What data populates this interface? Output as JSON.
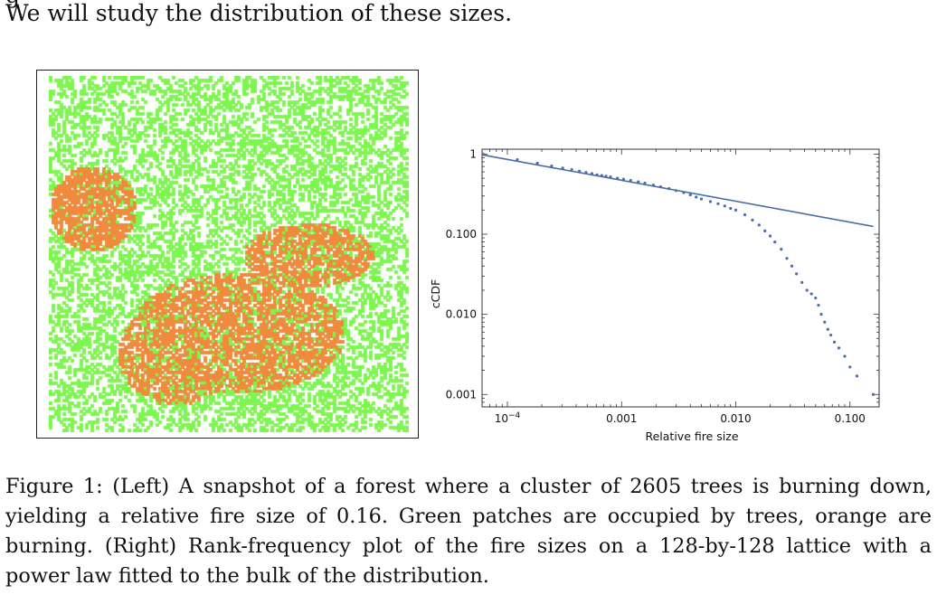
{
  "intro": {
    "partial_line": "g",
    "line": "We will study the distribution of these sizes."
  },
  "forest": {
    "grid_size": 128,
    "burning_cluster_trees": 2605,
    "relative_fire_size": 0.16,
    "colors": {
      "tree": "#7CF74E",
      "burning": "#F08A3C",
      "empty": "#FFFFFF"
    }
  },
  "chart_data": {
    "type": "scatter",
    "title": "",
    "xlabel": "Relative fire size",
    "ylabel": "cCDF",
    "xscale": "log",
    "yscale": "log",
    "xlim": [
      6e-05,
      0.18
    ],
    "ylim": [
      0.0007,
      1.15
    ],
    "x_tick_labels": [
      {
        "value": 0.0001,
        "label": "10^-4"
      },
      {
        "value": 0.001,
        "label": "0.001"
      },
      {
        "value": 0.01,
        "label": "0.010"
      },
      {
        "value": 0.1,
        "label": "0.100"
      }
    ],
    "y_tick_labels": [
      {
        "value": 1,
        "label": "1"
      },
      {
        "value": 0.1,
        "label": "0.100"
      },
      {
        "value": 0.01,
        "label": "0.010"
      },
      {
        "value": 0.001,
        "label": "0.001"
      }
    ],
    "series": [
      {
        "kind": "points",
        "color": "#4A6EA8",
        "points": [
          [
            6.1e-05,
            1.0
          ],
          [
            0.000122,
            0.85
          ],
          [
            0.000183,
            0.77
          ],
          [
            0.000244,
            0.71
          ],
          [
            0.000305,
            0.67
          ],
          [
            0.000366,
            0.64
          ],
          [
            0.000427,
            0.61
          ],
          [
            0.000488,
            0.59
          ],
          [
            0.00055,
            0.57
          ],
          [
            0.00061,
            0.55
          ],
          [
            0.00067,
            0.54
          ],
          [
            0.00073,
            0.53
          ],
          [
            0.0008,
            0.52
          ],
          [
            0.00092,
            0.5
          ],
          [
            0.00104,
            0.485
          ],
          [
            0.0012,
            0.47
          ],
          [
            0.0014,
            0.45
          ],
          [
            0.0016,
            0.435
          ],
          [
            0.0019,
            0.41
          ],
          [
            0.0022,
            0.39
          ],
          [
            0.0026,
            0.37
          ],
          [
            0.003,
            0.35
          ],
          [
            0.0035,
            0.33
          ],
          [
            0.004,
            0.31
          ],
          [
            0.0045,
            0.29
          ],
          [
            0.005,
            0.275
          ],
          [
            0.006,
            0.255
          ],
          [
            0.007,
            0.24
          ],
          [
            0.008,
            0.225
          ],
          [
            0.009,
            0.21
          ],
          [
            0.01,
            0.2
          ],
          [
            0.012,
            0.175
          ],
          [
            0.014,
            0.15
          ],
          [
            0.016,
            0.13
          ],
          [
            0.018,
            0.11
          ],
          [
            0.02,
            0.095
          ],
          [
            0.022,
            0.08
          ],
          [
            0.025,
            0.065
          ],
          [
            0.028,
            0.05
          ],
          [
            0.031,
            0.04
          ],
          [
            0.034,
            0.032
          ],
          [
            0.038,
            0.025
          ],
          [
            0.042,
            0.02
          ],
          [
            0.046,
            0.018
          ],
          [
            0.05,
            0.016
          ],
          [
            0.053,
            0.013
          ],
          [
            0.056,
            0.01
          ],
          [
            0.06,
            0.008
          ],
          [
            0.064,
            0.0065
          ],
          [
            0.068,
            0.0055
          ],
          [
            0.073,
            0.0045
          ],
          [
            0.08,
            0.0038
          ],
          [
            0.09,
            0.003
          ],
          [
            0.1,
            0.0022
          ],
          [
            0.115,
            0.0017
          ],
          [
            0.16,
            0.001
          ]
        ]
      },
      {
        "kind": "line",
        "name": "power law",
        "color": "#4A6EA8",
        "points": [
          [
            6e-05,
            0.98
          ],
          [
            0.16,
            0.125
          ]
        ]
      }
    ],
    "grid": false
  },
  "caption": {
    "label": "Figure 1:",
    "text": "(Left) A snapshot of a forest where a cluster of 2605 trees is burning down, yielding a relative fire size of 0.16. Green patches are occupied by trees, orange are burning. (Right) Rank-frequency plot of the fire sizes on a 128-by-128 lattice with a power law fitted to the bulk of the distribution."
  }
}
